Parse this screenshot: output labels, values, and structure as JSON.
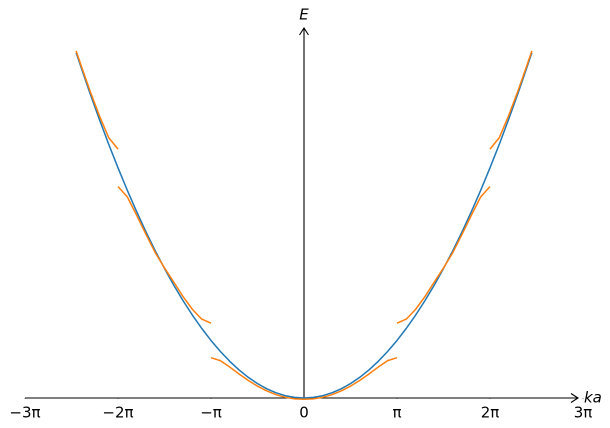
{
  "chart_data": {
    "type": "line",
    "xlabel": "ka",
    "ylabel": "E",
    "xlim": [
      -3,
      3
    ],
    "ylim": [
      0,
      6.43
    ],
    "xticks": [
      {
        "value": -3,
        "label": "−3π"
      },
      {
        "value": -2,
        "label": "−2π"
      },
      {
        "value": -1,
        "label": "−π"
      },
      0,
      {
        "value": 1,
        "label": "π"
      },
      {
        "value": 2,
        "label": "2π"
      },
      {
        "value": 3,
        "label": "3π"
      }
    ],
    "series": [
      {
        "color": "#1f77b4",
        "x": [
          -2.45,
          -2.4,
          -2.3,
          -2.2,
          -2.1,
          -2.0,
          -1.9,
          -1.8,
          -1.7,
          -1.6,
          -1.5,
          -1.4,
          -1.3,
          -1.2,
          -1.1,
          -1.0,
          -0.9,
          -0.8,
          -0.7,
          -0.6,
          -0.5,
          -0.4,
          -0.3,
          -0.2,
          -0.1,
          0,
          0.1,
          0.2,
          0.3,
          0.4,
          0.5,
          0.6,
          0.7,
          0.8,
          0.9,
          1.0,
          1.1,
          1.2,
          1.3,
          1.4,
          1.5,
          1.6,
          1.7,
          1.8,
          1.9,
          2.0,
          2.1,
          2.2,
          2.3,
          2.4,
          2.45
        ],
        "values": [
          6.0025,
          5.76,
          5.29,
          4.84,
          4.41,
          4,
          3.61,
          3.24,
          2.89,
          2.56,
          2.25,
          1.96,
          1.69,
          1.44,
          1.21,
          1,
          0.81,
          0.64,
          0.49,
          0.36,
          0.25,
          0.16,
          0.09,
          0.04,
          0.01,
          0,
          0.01,
          0.04,
          0.09,
          0.16,
          0.25,
          0.36,
          0.49,
          0.64,
          0.81,
          1,
          1.21,
          1.44,
          1.69,
          1.96,
          2.25,
          2.56,
          2.89,
          3.24,
          3.61,
          4,
          4.41,
          4.84,
          5.29,
          5.76,
          6.0025
        ]
      },
      {
        "color": "#ff7f0e",
        "x": [
          -2.45,
          -2.4,
          -2.3,
          -2.2,
          -2.1,
          -2.0,
          null,
          -2.0,
          -1.9,
          -1.8,
          -1.7,
          -1.6,
          -1.5,
          -1.4,
          -1.3,
          -1.2,
          -1.1,
          -1.0,
          null,
          -1.0,
          -0.9,
          -0.8,
          -0.7,
          -0.6,
          -0.5,
          -0.4,
          -0.3,
          -0.2,
          -0.1,
          0,
          0.1,
          0.2,
          0.3,
          0.4,
          0.5,
          0.6,
          0.7,
          0.8,
          0.9,
          1.0,
          null,
          1.0,
          1.1,
          1.2,
          1.3,
          1.4,
          1.5,
          1.6,
          1.7,
          1.8,
          1.9,
          2.0,
          null,
          2.0,
          2.1,
          2.2,
          2.3,
          2.4,
          2.45
        ],
        "values": [
          6.032,
          5.793,
          5.333,
          4.904,
          4.525,
          4.325,
          null,
          3.675,
          3.495,
          3.177,
          2.847,
          2.527,
          2.26,
          2.014,
          1.761,
          1.54,
          1.371,
          1.3,
          null,
          0.7,
          0.649,
          0.54,
          0.419,
          0.306,
          0.206,
          0.123,
          0.058,
          0.012,
          -0.015,
          -0.022,
          -0.015,
          0.012,
          0.058,
          0.123,
          0.206,
          0.306,
          0.419,
          0.54,
          0.649,
          0.7,
          null,
          1.3,
          1.371,
          1.54,
          1.761,
          2.014,
          2.26,
          2.527,
          2.847,
          3.177,
          3.495,
          3.675,
          null,
          4.325,
          4.525,
          4.904,
          5.333,
          5.793,
          6.032
        ]
      }
    ]
  }
}
